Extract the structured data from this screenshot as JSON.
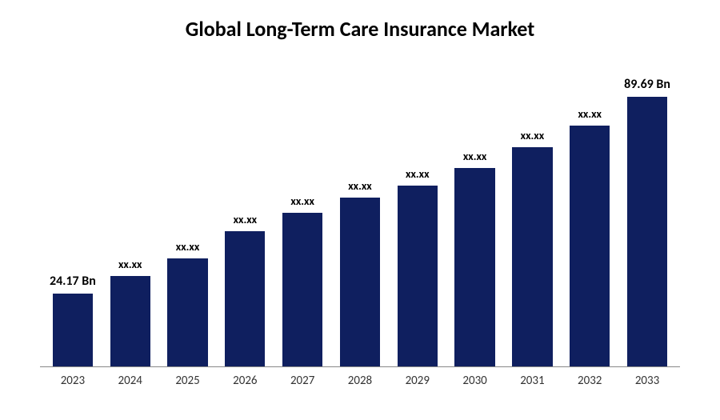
{
  "chart": {
    "type": "bar",
    "title": "Global Long-Term Care Insurance Market",
    "title_fontsize": 26,
    "title_color": "#000000",
    "background_color": "#ffffff",
    "axis_color": "#888888",
    "bar_color": "#0f1f5f",
    "bar_width_pct": 70,
    "max_value": 100,
    "label_fontsize": 16,
    "label_fontsize_small": 14,
    "x_label_fontsize": 15,
    "x_label_color": "#333333",
    "categories": [
      "2023",
      "2024",
      "2025",
      "2026",
      "2027",
      "2028",
      "2029",
      "2030",
      "2031",
      "2032",
      "2033"
    ],
    "values": [
      24.17,
      30,
      36,
      45,
      51,
      56,
      60,
      66,
      73,
      80,
      89.69
    ],
    "labels": [
      "24.17 Bn",
      "xx.xx",
      "xx.xx",
      "xx.xx",
      "xx.xx",
      "xx.xx",
      "xx.xx",
      "xx.xx",
      "xx.xx",
      "xx.xx",
      "89.69 Bn"
    ],
    "label_emphasis": [
      true,
      false,
      false,
      false,
      false,
      false,
      false,
      false,
      false,
      false,
      true
    ]
  }
}
